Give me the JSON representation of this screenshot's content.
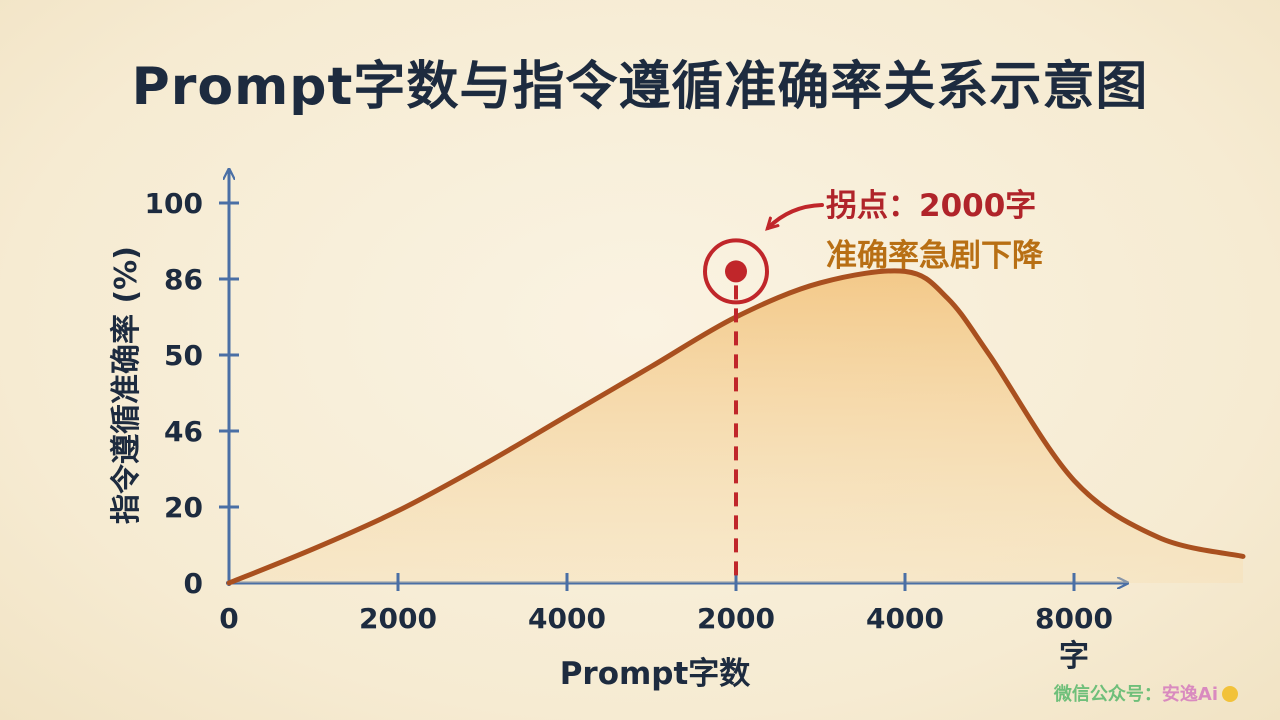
{
  "title": "Prompt字数与指令遵循准确率关系示意图",
  "watermark": {
    "prefix": "微信公众号：",
    "brand": "安逸Ai"
  },
  "colors": {
    "axis": "#4a6fa5",
    "curve": "#a9501f",
    "fill": "#f2c27a",
    "marker": "#c0262a",
    "annotation_line2": "#b86f14",
    "text": "#1d2b3f"
  },
  "chart_data": {
    "type": "area",
    "xlabel": "Prompt字数",
    "x_unit": "字",
    "ylabel": "指令遵循准确率 (%)",
    "x_tick_labels": [
      "0",
      "2000",
      "4000",
      "2000",
      "4000",
      "8000"
    ],
    "y_tick_labels": [
      "0",
      "20",
      "46",
      "50",
      "86",
      "100"
    ],
    "series": [
      {
        "x_index": [
          0,
          0.5,
          1,
          1.5,
          2,
          2.5,
          3,
          3.5,
          4,
          4.25,
          4.5,
          5,
          5.5,
          6
        ],
        "y_index": [
          0,
          0.45,
          0.95,
          1.55,
          2.2,
          2.85,
          3.5,
          3.95,
          4.1,
          3.75,
          3.0,
          1.35,
          0.6,
          0.35
        ]
      }
    ],
    "peak": {
      "x_label": "2000",
      "y_index": 4.1
    },
    "annotation": {
      "line1": "拐点：2000字",
      "line2": "准确率急剧下降"
    },
    "grid": false
  }
}
